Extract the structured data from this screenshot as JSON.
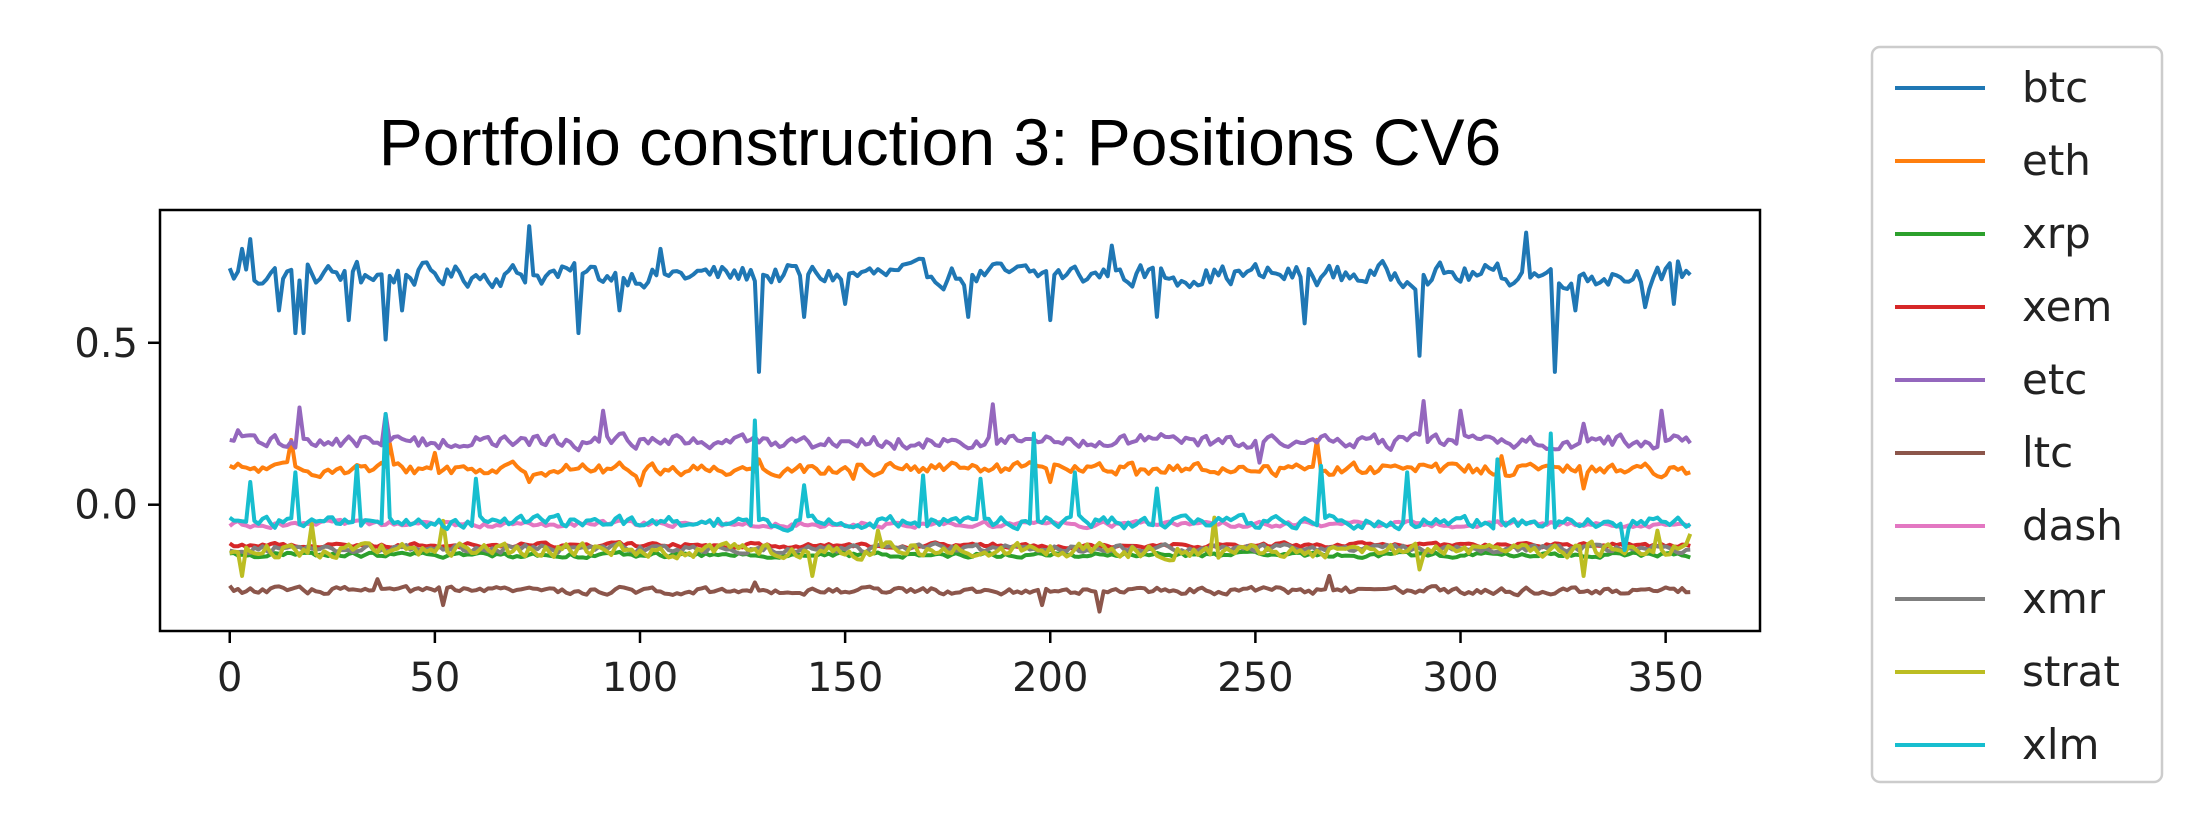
{
  "chart_data": {
    "type": "line",
    "title": "Portfolio construction 3: Positions CV6",
    "xlabel": "",
    "ylabel": "",
    "xlim": [
      -17,
      373
    ],
    "ylim": [
      -0.39,
      0.91
    ],
    "x_ticks": [
      0,
      50,
      100,
      150,
      200,
      250,
      300,
      350
    ],
    "y_ticks": [
      0.0,
      0.5
    ],
    "y_tick_labels": [
      "0.0",
      "0.5"
    ],
    "x_count": 357,
    "legend_position": "outside-right",
    "grid": false,
    "series": [
      {
        "name": "btc",
        "color": "#1f77b4",
        "base": 0.71,
        "spread": 0.055,
        "key_points": [
          {
            "x": 0,
            "y": 0.73
          },
          {
            "x": 3,
            "y": 0.79
          },
          {
            "x": 5,
            "y": 0.82
          },
          {
            "x": 12,
            "y": 0.6
          },
          {
            "x": 16,
            "y": 0.53
          },
          {
            "x": 18,
            "y": 0.53
          },
          {
            "x": 29,
            "y": 0.57
          },
          {
            "x": 31,
            "y": 0.75
          },
          {
            "x": 38,
            "y": 0.51
          },
          {
            "x": 42,
            "y": 0.6
          },
          {
            "x": 73,
            "y": 0.86
          },
          {
            "x": 85,
            "y": 0.53
          },
          {
            "x": 95,
            "y": 0.6
          },
          {
            "x": 105,
            "y": 0.79
          },
          {
            "x": 129,
            "y": 0.41
          },
          {
            "x": 140,
            "y": 0.58
          },
          {
            "x": 150,
            "y": 0.62
          },
          {
            "x": 180,
            "y": 0.58
          },
          {
            "x": 200,
            "y": 0.57
          },
          {
            "x": 215,
            "y": 0.8
          },
          {
            "x": 226,
            "y": 0.58
          },
          {
            "x": 262,
            "y": 0.56
          },
          {
            "x": 290,
            "y": 0.46
          },
          {
            "x": 316,
            "y": 0.84
          },
          {
            "x": 323,
            "y": 0.41
          },
          {
            "x": 328,
            "y": 0.6
          },
          {
            "x": 345,
            "y": 0.61
          },
          {
            "x": 352,
            "y": 0.62
          },
          {
            "x": 356,
            "y": 0.71
          }
        ]
      },
      {
        "name": "eth",
        "color": "#ff7f0e",
        "base": 0.11,
        "spread": 0.03,
        "key_points": [
          {
            "x": 0,
            "y": 0.12
          },
          {
            "x": 15,
            "y": 0.2
          },
          {
            "x": 39,
            "y": 0.19
          },
          {
            "x": 50,
            "y": 0.16
          },
          {
            "x": 73,
            "y": 0.07
          },
          {
            "x": 100,
            "y": 0.06
          },
          {
            "x": 129,
            "y": 0.14
          },
          {
            "x": 152,
            "y": 0.08
          },
          {
            "x": 176,
            "y": 0.13
          },
          {
            "x": 200,
            "y": 0.07
          },
          {
            "x": 220,
            "y": 0.13
          },
          {
            "x": 265,
            "y": 0.2
          },
          {
            "x": 282,
            "y": 0.12
          },
          {
            "x": 310,
            "y": 0.15
          },
          {
            "x": 330,
            "y": 0.05
          },
          {
            "x": 356,
            "y": 0.1
          }
        ]
      },
      {
        "name": "xrp",
        "color": "#2ca02c",
        "base": -0.155,
        "spread": 0.012,
        "key_points": []
      },
      {
        "name": "xem",
        "color": "#d62728",
        "base": -0.125,
        "spread": 0.012,
        "key_points": []
      },
      {
        "name": "etc",
        "color": "#9467bd",
        "base": 0.195,
        "spread": 0.035,
        "key_points": [
          {
            "x": 0,
            "y": 0.2
          },
          {
            "x": 2,
            "y": 0.23
          },
          {
            "x": 17,
            "y": 0.3
          },
          {
            "x": 38,
            "y": 0.28
          },
          {
            "x": 91,
            "y": 0.29
          },
          {
            "x": 186,
            "y": 0.31
          },
          {
            "x": 251,
            "y": 0.13
          },
          {
            "x": 291,
            "y": 0.32
          },
          {
            "x": 300,
            "y": 0.29
          },
          {
            "x": 330,
            "y": 0.25
          },
          {
            "x": 349,
            "y": 0.29
          },
          {
            "x": 356,
            "y": 0.19
          }
        ]
      },
      {
        "name": "ltc",
        "color": "#8c564b",
        "base": -0.265,
        "spread": 0.018,
        "key_points": [
          {
            "x": 0,
            "y": -0.25
          },
          {
            "x": 36,
            "y": -0.23
          },
          {
            "x": 52,
            "y": -0.31
          },
          {
            "x": 128,
            "y": -0.24
          },
          {
            "x": 198,
            "y": -0.31
          },
          {
            "x": 212,
            "y": -0.33
          },
          {
            "x": 268,
            "y": -0.22
          },
          {
            "x": 356,
            "y": -0.27
          }
        ]
      },
      {
        "name": "dash",
        "color": "#e377c2",
        "base": -0.06,
        "spread": 0.015,
        "key_points": []
      },
      {
        "name": "xmr",
        "color": "#7f7f7f",
        "base": -0.135,
        "spread": 0.02,
        "key_points": []
      },
      {
        "name": "strat",
        "color": "#bcbd22",
        "base": -0.14,
        "spread": 0.035,
        "key_points": [
          {
            "x": 3,
            "y": -0.22
          },
          {
            "x": 20,
            "y": -0.06
          },
          {
            "x": 52,
            "y": -0.05
          },
          {
            "x": 142,
            "y": -0.22
          },
          {
            "x": 158,
            "y": -0.08
          },
          {
            "x": 240,
            "y": -0.04
          },
          {
            "x": 290,
            "y": -0.2
          },
          {
            "x": 330,
            "y": -0.22
          },
          {
            "x": 348,
            "y": -0.08
          },
          {
            "x": 356,
            "y": -0.09
          }
        ]
      },
      {
        "name": "xlm",
        "color": "#17becf",
        "base": -0.055,
        "spread": 0.03,
        "key_points": [
          {
            "x": 0,
            "y": -0.04
          },
          {
            "x": 5,
            "y": 0.07
          },
          {
            "x": 16,
            "y": 0.1
          },
          {
            "x": 31,
            "y": 0.12
          },
          {
            "x": 38,
            "y": 0.28
          },
          {
            "x": 60,
            "y": 0.08
          },
          {
            "x": 128,
            "y": 0.26
          },
          {
            "x": 140,
            "y": 0.06
          },
          {
            "x": 169,
            "y": 0.09
          },
          {
            "x": 183,
            "y": 0.08
          },
          {
            "x": 196,
            "y": 0.22
          },
          {
            "x": 206,
            "y": 0.1
          },
          {
            "x": 226,
            "y": 0.05
          },
          {
            "x": 266,
            "y": 0.12
          },
          {
            "x": 287,
            "y": 0.1
          },
          {
            "x": 309,
            "y": 0.14
          },
          {
            "x": 322,
            "y": 0.22
          },
          {
            "x": 340,
            "y": -0.14
          },
          {
            "x": 356,
            "y": -0.06
          }
        ]
      }
    ]
  }
}
